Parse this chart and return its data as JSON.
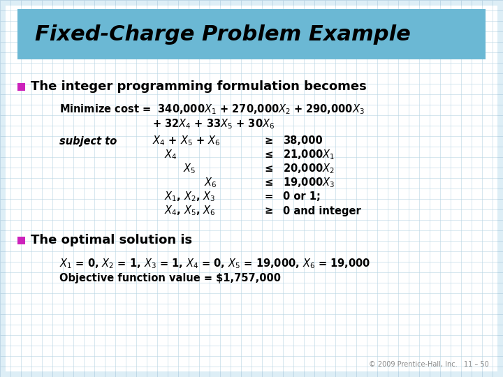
{
  "title": "Fixed-Charge Problem Example",
  "title_bg_color": "#6BB8D4",
  "bg_color": "#DDEEF6",
  "grid_color": "#B8D4E4",
  "bullet_color": "#CC22BB",
  "footer_text": "© 2009 Prentice-Hall, Inc.   11 – 50",
  "bullet1": "The integer programming formulation becomes",
  "bullet2": "The optimal solution is",
  "title_fontsize": 22,
  "bullet_fontsize": 13,
  "body_fontsize": 10.5
}
